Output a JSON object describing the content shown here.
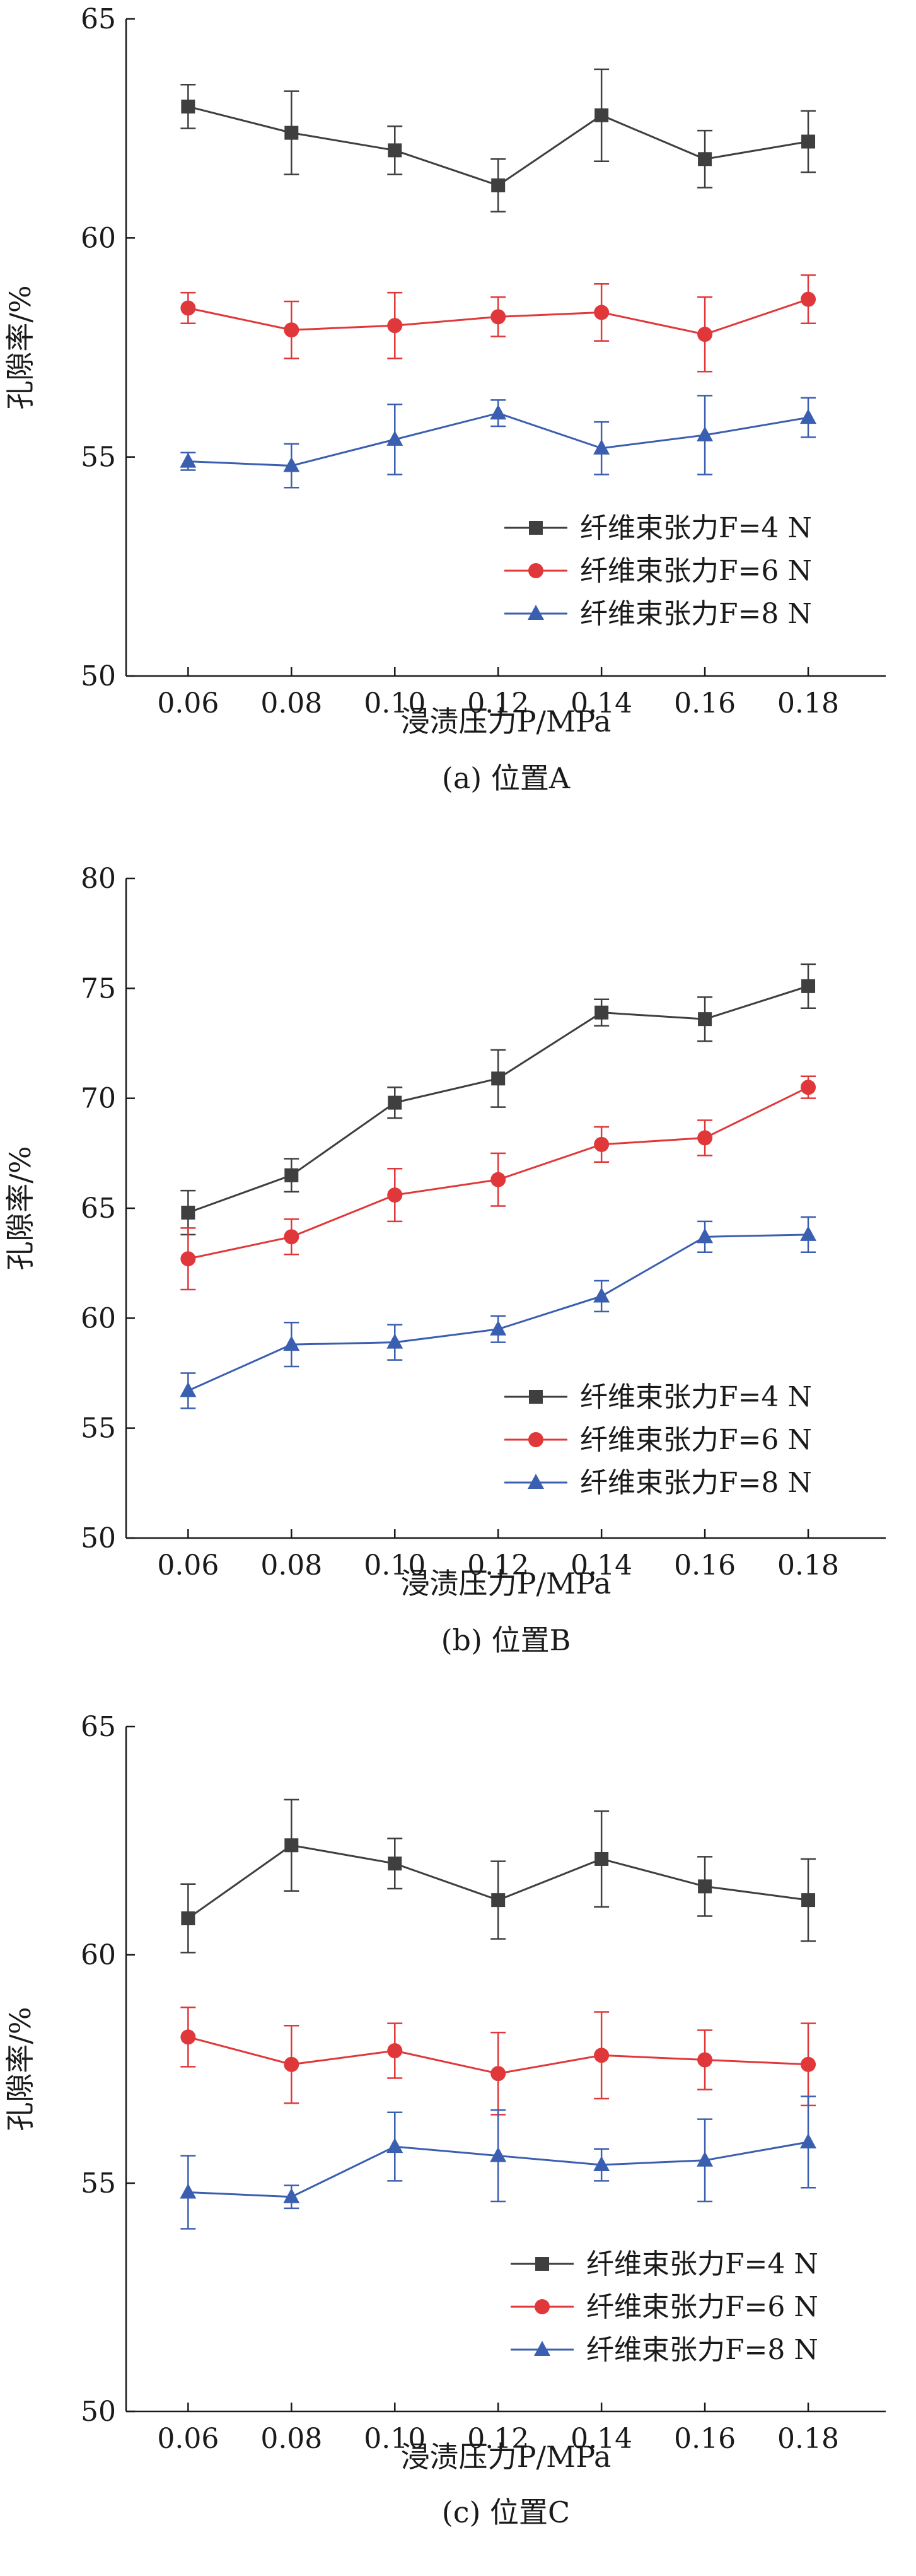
{
  "chart_data": [
    {
      "type": "line",
      "caption": "(a) 位置A",
      "xlabel": "浸渍压力P/MPa",
      "ylabel": "孔隙率/%",
      "categories": [
        "0.06",
        "0.08",
        "0.10",
        "0.12",
        "0.14",
        "0.16",
        "0.18"
      ],
      "ylim": [
        50,
        65
      ],
      "yticks": [
        "50",
        "55",
        "60",
        "65"
      ],
      "legend_position": "bottom-right",
      "series": [
        {
          "name": "纤维束张力F=4 N",
          "color": "#3f3f3f",
          "marker": "square",
          "values": [
            63.0,
            62.4,
            62.0,
            61.2,
            62.8,
            61.8,
            62.2
          ],
          "errors": [
            0.5,
            0.95,
            0.55,
            0.6,
            1.05,
            0.65,
            0.7
          ]
        },
        {
          "name": "纤维束张力F=6 N",
          "color": "#e0383a",
          "marker": "circle",
          "values": [
            58.4,
            57.9,
            58.0,
            58.2,
            58.3,
            57.8,
            58.6
          ],
          "errors": [
            0.35,
            0.65,
            0.75,
            0.45,
            0.65,
            0.85,
            0.55
          ]
        },
        {
          "name": "纤维束张力F=8 N",
          "color": "#3b5fb0",
          "marker": "triangle",
          "values": [
            54.9,
            54.8,
            55.4,
            56.0,
            55.2,
            55.5,
            55.9
          ],
          "errors": [
            0.2,
            0.5,
            0.8,
            0.3,
            0.6,
            0.9,
            0.45
          ]
        }
      ]
    },
    {
      "type": "line",
      "caption": "(b) 位置B",
      "xlabel": "浸渍压力P/MPa",
      "ylabel": "孔隙率/%",
      "categories": [
        "0.06",
        "0.08",
        "0.10",
        "0.12",
        "0.14",
        "0.16",
        "0.18"
      ],
      "ylim": [
        50,
        80
      ],
      "yticks": [
        "50",
        "55",
        "60",
        "65",
        "70",
        "75",
        "80"
      ],
      "legend_position": "bottom-right",
      "series": [
        {
          "name": "纤维束张力F=4 N",
          "color": "#3f3f3f",
          "marker": "square",
          "values": [
            64.8,
            66.5,
            69.8,
            70.9,
            73.9,
            73.6,
            75.1
          ],
          "errors": [
            1.0,
            0.75,
            0.7,
            1.3,
            0.6,
            1.0,
            1.0
          ]
        },
        {
          "name": "纤维束张力F=6 N",
          "color": "#e0383a",
          "marker": "circle",
          "values": [
            62.7,
            63.7,
            65.6,
            66.3,
            67.9,
            68.2,
            70.5
          ],
          "errors": [
            1.4,
            0.8,
            1.2,
            1.2,
            0.8,
            0.8,
            0.5
          ]
        },
        {
          "name": "纤维束张力F=8 N",
          "color": "#3b5fb0",
          "marker": "triangle",
          "values": [
            56.7,
            58.8,
            58.9,
            59.5,
            61.0,
            63.7,
            63.8
          ],
          "errors": [
            0.8,
            1.0,
            0.8,
            0.6,
            0.7,
            0.7,
            0.8
          ]
        }
      ]
    },
    {
      "type": "line",
      "caption": "(c) 位置C",
      "xlabel": "浸渍压力P/MPa",
      "ylabel": "孔隙率/%",
      "categories": [
        "0.06",
        "0.08",
        "0.10",
        "0.12",
        "0.14",
        "0.16",
        "0.18"
      ],
      "ylim": [
        50,
        65
      ],
      "yticks": [
        "50",
        "55",
        "60",
        "65"
      ],
      "legend_position": "bottom-right",
      "series": [
        {
          "name": "纤维束张力F=4 N",
          "color": "#3f3f3f",
          "marker": "square",
          "values": [
            60.8,
            62.4,
            62.0,
            61.2,
            62.1,
            61.5,
            61.2
          ],
          "errors": [
            0.75,
            1.0,
            0.55,
            0.85,
            1.05,
            0.65,
            0.9
          ]
        },
        {
          "name": "纤维束张力F=6 N",
          "color": "#e0383a",
          "marker": "circle",
          "values": [
            58.2,
            57.6,
            57.9,
            57.4,
            57.8,
            57.7,
            57.6
          ],
          "errors": [
            0.65,
            0.85,
            0.6,
            0.9,
            0.95,
            0.65,
            0.9
          ]
        },
        {
          "name": "纤维束张力F=8 N",
          "color": "#3b5fb0",
          "marker": "triangle",
          "values": [
            54.8,
            54.7,
            55.8,
            55.6,
            55.4,
            55.5,
            55.9
          ],
          "errors": [
            0.8,
            0.25,
            0.75,
            1.0,
            0.35,
            0.9,
            1.0
          ]
        }
      ]
    }
  ]
}
